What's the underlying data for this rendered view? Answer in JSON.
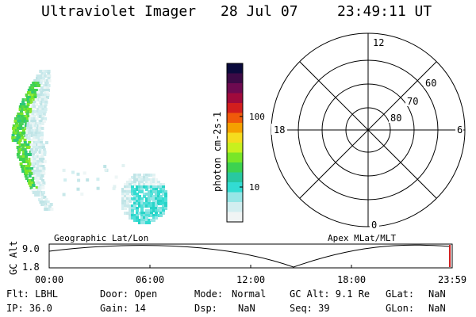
{
  "header": {
    "title": "Ultraviolet Imager",
    "date": "28 Jul 07",
    "time": "23:49:11 UT"
  },
  "colorbar": {
    "label": "photon cm-2s-1",
    "ticks": [
      "100",
      "10"
    ],
    "colors": [
      "#0a0a3c",
      "#3c0a46",
      "#6e0a50",
      "#a00a3c",
      "#d21e1e",
      "#f05a0a",
      "#f5a000",
      "#f5dc1e",
      "#c8f01e",
      "#78e628",
      "#3cd250",
      "#28c8a0",
      "#32dcd2",
      "#96e6e6",
      "#d2eef0",
      "#f0f4f4"
    ]
  },
  "polar": {
    "mlt_labels": {
      "top": "12",
      "left": "18",
      "right": "6",
      "bottom": "0"
    },
    "lat_labels": [
      "60",
      "70",
      "80"
    ]
  },
  "timeline": {
    "axis_title": "GC Alt",
    "ymax": "9.0",
    "ymin": "1.8",
    "left_label": "Geographic Lat/Lon",
    "right_label": "Apex  MLat/MLT",
    "ticks": [
      "00:00",
      "06:00",
      "12:00",
      "18:00",
      "23:59"
    ]
  },
  "info": {
    "flt": "Flt: LBHL",
    "ip": "IP: 36.0",
    "door": "Door: Open",
    "gain": "Gain: 14",
    "mode_label": "Mode:",
    "mode_value": "Normal",
    "dsp_label": "Dsp:",
    "dsp_value": "NaN",
    "gcalt": "GC Alt: 9.1 Re",
    "seq": "Seq: 39",
    "glat_label": "GLat:",
    "glat_value": "NaN",
    "glon_label": "GLon:",
    "glon_value": "NaN"
  }
}
